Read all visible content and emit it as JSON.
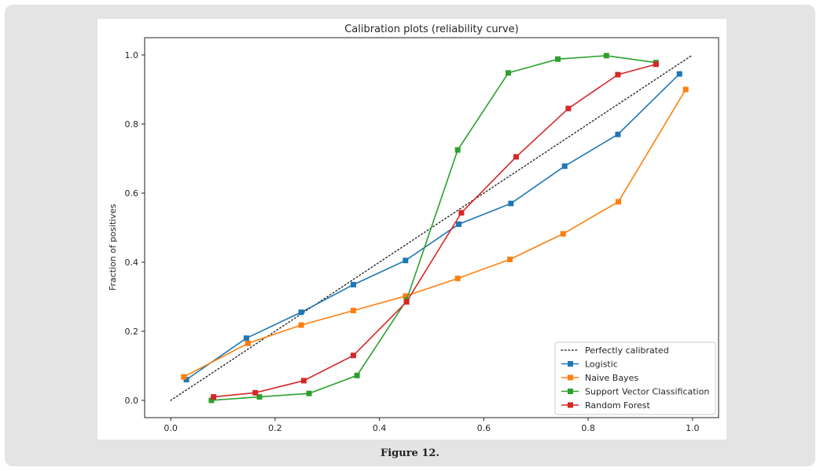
{
  "caption": "Figure 12.",
  "chart_data": {
    "type": "line",
    "title": "Calibration plots  (reliability curve)",
    "xlabel": "",
    "ylabel": "Fraction of positives",
    "xlim": [
      -0.05,
      1.05
    ],
    "ylim": [
      -0.05,
      1.05
    ],
    "xticks": [
      "0.0",
      "0.2",
      "0.4",
      "0.6",
      "0.8",
      "1.0"
    ],
    "yticks": [
      "0.0",
      "0.2",
      "0.4",
      "0.6",
      "0.8",
      "1.0"
    ],
    "legend_position": "bottom-right",
    "reference": {
      "name": "Perfectly calibrated",
      "color": "#333333",
      "x": [
        0,
        1
      ],
      "y": [
        0,
        1
      ]
    },
    "series": [
      {
        "name": "Logistic",
        "color": "#1f77b4",
        "x": [
          0.03,
          0.145,
          0.25,
          0.35,
          0.45,
          0.552,
          0.652,
          0.755,
          0.857,
          0.975
        ],
        "y": [
          0.06,
          0.18,
          0.255,
          0.335,
          0.405,
          0.51,
          0.57,
          0.678,
          0.77,
          0.945
        ]
      },
      {
        "name": "Naive Bayes",
        "color": "#ff7f0e",
        "x": [
          0.025,
          0.148,
          0.25,
          0.35,
          0.45,
          0.55,
          0.65,
          0.752,
          0.858,
          0.987
        ],
        "y": [
          0.068,
          0.165,
          0.218,
          0.26,
          0.302,
          0.353,
          0.408,
          0.482,
          0.575,
          0.9
        ]
      },
      {
        "name": "Support Vector Classification",
        "color": "#2ca02c",
        "x": [
          0.078,
          0.17,
          0.265,
          0.357,
          0.452,
          0.55,
          0.647,
          0.742,
          0.835,
          0.93
        ],
        "y": [
          0.0,
          0.01,
          0.02,
          0.072,
          0.29,
          0.725,
          0.948,
          0.988,
          0.998,
          0.978
        ]
      },
      {
        "name": "Random Forest",
        "color": "#d62728",
        "x": [
          0.082,
          0.162,
          0.255,
          0.35,
          0.452,
          0.557,
          0.662,
          0.762,
          0.857,
          0.93
        ],
        "y": [
          0.01,
          0.022,
          0.057,
          0.13,
          0.285,
          0.543,
          0.705,
          0.845,
          0.943,
          0.973
        ]
      }
    ]
  }
}
